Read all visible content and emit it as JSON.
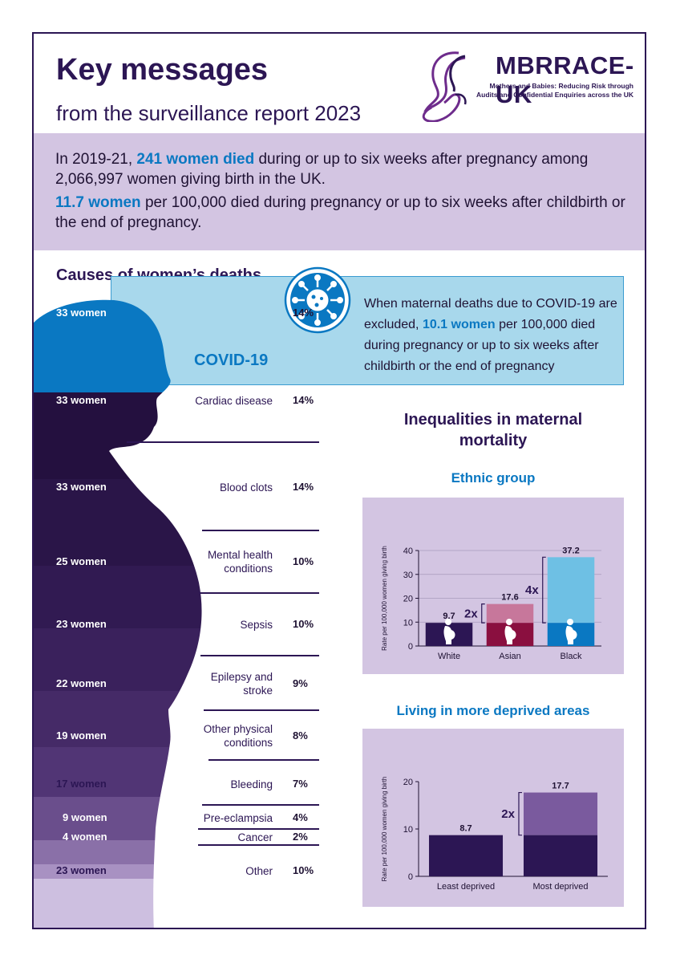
{
  "header": {
    "title": "Key messages",
    "subtitle": "from the surveillance report 2023",
    "logo_name": "MBRRACE-UK",
    "logo_tagline_1": "Mothers and Babies: Reducing Risk through",
    "logo_tagline_2": "Audits and Confidential Enquiries across the UK"
  },
  "summary": {
    "line1_pre": "In 2019-21, ",
    "line1_highlight": "241 women died",
    "line1_post": " during or up to six weeks after pregnancy among 2,066,997 women giving birth in the UK.",
    "line2_highlight": "11.7 women",
    "line2_post": " per 100,000 died during pregnancy or up to six weeks after childbirth or the end of pregnancy."
  },
  "causes": {
    "title": "Causes of women’s deaths",
    "covid_note_pre": "When maternal deaths due to COVID-19 are excluded, ",
    "covid_note_highlight": "10.1 women",
    "covid_note_post": " per 100,000 died during pregnancy or up to six weeks after childbirth or the end of pregnancy",
    "rows": [
      {
        "count": "33 women",
        "label": "COVID-19",
        "pct": "14%"
      },
      {
        "count": "33 women",
        "label": "Cardiac disease",
        "pct": "14%"
      },
      {
        "count": "33 women",
        "label": "Blood clots",
        "pct": "14%"
      },
      {
        "count": "25 women",
        "label": "Mental health conditions",
        "pct": "10%"
      },
      {
        "count": "23 women",
        "label": "Sepsis",
        "pct": "10%"
      },
      {
        "count": "22 women",
        "label": "Epilepsy and stroke",
        "pct": "9%"
      },
      {
        "count": "19 women",
        "label": "Other physical conditions",
        "pct": "8%"
      },
      {
        "count": "17 women",
        "label": "Bleeding",
        "pct": "7%"
      },
      {
        "count": "9 women",
        "label": "Pre-eclampsia",
        "pct": "4%"
      },
      {
        "count": "4 women",
        "label": "Cancer",
        "pct": "2%"
      },
      {
        "count": "23 women",
        "label": "Other",
        "pct": "10%"
      }
    ]
  },
  "inequalities": {
    "title": "Inequalities in maternal mortality",
    "ethnic_title": "Ethnic group",
    "deprivation_title": "Living in more deprived areas"
  },
  "colors": {
    "dark_purple": "#2c1654",
    "light_purple": "#d3c5e2",
    "accent_blue": "#0a78c2",
    "covid_light_blue": "#a8d8ec"
  },
  "chart_data": [
    {
      "type": "bar",
      "title": "Ethnic group",
      "categories": [
        "White",
        "Asian",
        "Black"
      ],
      "values": [
        9.7,
        17.6,
        37.2
      ],
      "ylabel": "Rate per 100,000 women giving birth",
      "ylim": [
        0,
        40
      ],
      "yticks": [
        0,
        10,
        20,
        30,
        40
      ],
      "annotations": [
        {
          "label": "2x",
          "category": "Asian"
        },
        {
          "label": "4x",
          "category": "Black"
        }
      ],
      "colors": {
        "White": "#2c1654",
        "Asian": "#8a0f3f",
        "Asian_excess": "#c7779b",
        "Black": "#0a78c2",
        "Black_excess": "#6ec0e4"
      },
      "grid": true
    },
    {
      "type": "bar",
      "title": "Living in more deprived areas",
      "categories": [
        "Least deprived",
        "Most deprived"
      ],
      "values": [
        8.7,
        17.7
      ],
      "ylabel": "Rate per 100,000 women giving birth",
      "ylim": [
        0,
        20
      ],
      "yticks": [
        0,
        10,
        20
      ],
      "annotations": [
        {
          "label": "2x",
          "category": "Most deprived"
        }
      ],
      "colors": {
        "Least deprived": "#2c1654",
        "Most deprived": "#2c1654",
        "Most_excess": "#7a5a9e"
      },
      "grid": false
    }
  ]
}
